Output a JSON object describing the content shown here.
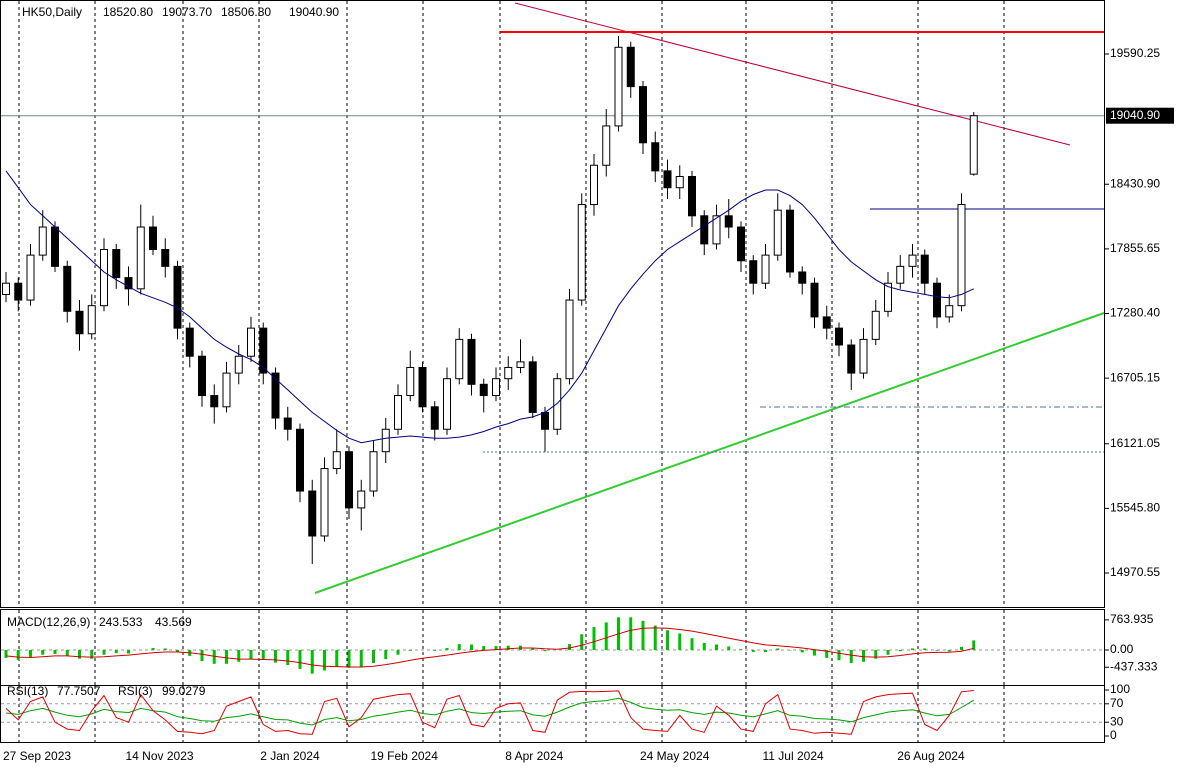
{
  "chart_data": {
    "type": "candlestick",
    "title": "HK50,Daily",
    "ohlc_labels": [
      "18520.80",
      "19073.70",
      "18506.80",
      "19040.90"
    ],
    "categories": [
      "27 Sep 2023",
      null,
      null,
      null,
      null,
      null,
      null,
      null,
      null,
      null,
      "14 Nov 2023",
      null,
      null,
      null,
      null,
      null,
      null,
      null,
      null,
      null,
      null,
      "2 Jan 2024",
      null,
      null,
      null,
      null,
      null,
      null,
      null,
      null,
      "19 Feb 2024",
      null,
      null,
      null,
      null,
      null,
      null,
      null,
      null,
      null,
      null,
      "8 Apr 2024",
      null,
      null,
      null,
      null,
      null,
      null,
      null,
      null,
      null,
      null,
      "24 May 2024",
      null,
      null,
      null,
      null,
      null,
      null,
      null,
      null,
      null,
      "11 Jul 2024",
      null,
      null,
      null,
      null,
      null,
      null,
      null,
      null,
      null,
      null,
      "26 Aug 2024",
      null,
      null,
      null,
      null,
      null,
      null
    ],
    "ohlc": [
      [
        17450,
        17650,
        17380,
        17550
      ],
      [
        17550,
        17600,
        17300,
        17400
      ],
      [
        17400,
        17900,
        17350,
        17800
      ],
      [
        17800,
        18200,
        17750,
        18050
      ],
      [
        18050,
        18100,
        17650,
        17700
      ],
      [
        17700,
        17750,
        17200,
        17300
      ],
      [
        17300,
        17400,
        16950,
        17100
      ],
      [
        17100,
        17450,
        17050,
        17350
      ],
      [
        17350,
        17950,
        17300,
        17850
      ],
      [
        17850,
        17900,
        17500,
        17600
      ],
      [
        17600,
        17700,
        17350,
        17500
      ],
      [
        17500,
        18250,
        17450,
        18050
      ],
      [
        18050,
        18150,
        17800,
        17850
      ],
      [
        17850,
        17950,
        17600,
        17700
      ],
      [
        17700,
        17750,
        17050,
        17150
      ],
      [
        17150,
        17200,
        16800,
        16900
      ],
      [
        16900,
        16950,
        16450,
        16550
      ],
      [
        16550,
        16650,
        16300,
        16450
      ],
      [
        16450,
        16850,
        16400,
        16750
      ],
      [
        16750,
        17000,
        16650,
        16900
      ],
      [
        16900,
        17250,
        16850,
        17150
      ],
      [
        17150,
        17200,
        16650,
        16750
      ],
      [
        16750,
        16800,
        16250,
        16350
      ],
      [
        16350,
        16450,
        16150,
        16250
      ],
      [
        16250,
        16300,
        15600,
        15700
      ],
      [
        15700,
        15800,
        15050,
        15300
      ],
      [
        15300,
        16000,
        15250,
        15900
      ],
      [
        15900,
        16250,
        15850,
        16050
      ],
      [
        16050,
        16100,
        15450,
        15550
      ],
      [
        15550,
        15800,
        15350,
        15700
      ],
      [
        15700,
        16150,
        15650,
        16050
      ],
      [
        16050,
        16350,
        15950,
        16250
      ],
      [
        16250,
        16650,
        16200,
        16550
      ],
      [
        16550,
        16950,
        16500,
        16800
      ],
      [
        16800,
        16850,
        16400,
        16450
      ],
      [
        16450,
        16500,
        16150,
        16250
      ],
      [
        16250,
        16800,
        16200,
        16700
      ],
      [
        16700,
        17150,
        16650,
        17050
      ],
      [
        17050,
        17100,
        16550,
        16650
      ],
      [
        16650,
        16700,
        16400,
        16550
      ],
      [
        16550,
        16800,
        16500,
        16700
      ],
      [
        16700,
        16900,
        16600,
        16800
      ],
      [
        16800,
        17050,
        16750,
        16850
      ],
      [
        16850,
        16900,
        16350,
        16400
      ],
      [
        16400,
        16450,
        16050,
        16250
      ],
      [
        16250,
        16750,
        16200,
        16700
      ],
      [
        16700,
        17500,
        16650,
        17400
      ],
      [
        17400,
        18350,
        17350,
        18250
      ],
      [
        18250,
        18700,
        18150,
        18600
      ],
      [
        18600,
        19100,
        18500,
        18950
      ],
      [
        18950,
        19750,
        18900,
        19650
      ],
      [
        19650,
        19700,
        19200,
        19300
      ],
      [
        19300,
        19350,
        18700,
        18800
      ],
      [
        18800,
        18900,
        18450,
        18550
      ],
      [
        18550,
        18650,
        18300,
        18400
      ],
      [
        18400,
        18600,
        18300,
        18500
      ],
      [
        18500,
        18550,
        18050,
        18150
      ],
      [
        18150,
        18200,
        17800,
        17900
      ],
      [
        17900,
        18250,
        17850,
        18150
      ],
      [
        18150,
        18300,
        17950,
        18050
      ],
      [
        18050,
        18100,
        17650,
        17750
      ],
      [
        17750,
        17800,
        17450,
        17550
      ],
      [
        17550,
        17900,
        17500,
        17800
      ],
      [
        17800,
        18350,
        17750,
        18200
      ],
      [
        18200,
        18250,
        17600,
        17650
      ],
      [
        17650,
        17700,
        17450,
        17550
      ],
      [
        17550,
        17600,
        17150,
        17250
      ],
      [
        17250,
        17350,
        17050,
        17150
      ],
      [
        17150,
        17200,
        16900,
        17000
      ],
      [
        17000,
        17050,
        16600,
        16750
      ],
      [
        16750,
        17150,
        16700,
        17050
      ],
      [
        17050,
        17400,
        17000,
        17300
      ],
      [
        17300,
        17650,
        17250,
        17550
      ],
      [
        17550,
        17800,
        17500,
        17700
      ],
      [
        17700,
        17900,
        17600,
        17800
      ],
      [
        17800,
        17850,
        17450,
        17550
      ],
      [
        17550,
        17600,
        17150,
        17250
      ],
      [
        17250,
        17450,
        17200,
        17350
      ],
      [
        17350,
        18350,
        17300,
        18250
      ],
      [
        18520.8,
        19073.7,
        18506.8,
        19040.9
      ]
    ],
    "up_color": "#ffffff",
    "down_color": "#000000",
    "ma": {
      "color": "#000080",
      "values": [
        18550,
        18400,
        18250,
        18150,
        18050,
        17950,
        17850,
        17750,
        17650,
        17580,
        17520,
        17460,
        17420,
        17380,
        17330,
        17250,
        17150,
        17050,
        16980,
        16920,
        16870,
        16800,
        16700,
        16600,
        16500,
        16400,
        16320,
        16240,
        16170,
        16130,
        16150,
        16170,
        16180,
        16190,
        16180,
        16170,
        16170,
        16180,
        16200,
        16230,
        16270,
        16300,
        16340,
        16360,
        16400,
        16480,
        16600,
        16750,
        16950,
        17150,
        17350,
        17500,
        17630,
        17750,
        17850,
        17920,
        17990,
        18060,
        18130,
        18200,
        18280,
        18340,
        18380,
        18380,
        18330,
        18250,
        18130,
        17990,
        17850,
        17740,
        17660,
        17580,
        17520,
        17490,
        17470,
        17450,
        17430,
        17420,
        17450,
        17500
      ]
    },
    "ylim": [
      14667.9,
      20070.9
    ],
    "yticks": [
      19590.25,
      {
        "value": 18430.9,
        "label": "18430.90"
      },
      17855.65,
      {
        "value": 17280.4,
        "label": "17280.40"
      },
      16705.15,
      16121.05,
      {
        "value": 15545.8,
        "label": "15545.80"
      },
      14970.55
    ],
    "grid": true,
    "macd": {
      "name": "MACD(12,26,9)",
      "color": "#00c000",
      "signal_color": "#d00000",
      "values": [
        -200,
        -250,
        -200,
        -120,
        -100,
        -150,
        -220,
        -220,
        -120,
        -80,
        -90,
        0,
        50,
        40,
        -50,
        -150,
        -280,
        -350,
        -350,
        -300,
        -230,
        -250,
        -320,
        -380,
        -480,
        -600,
        -520,
        -430,
        -450,
        -430,
        -330,
        -230,
        -120,
        -20,
        0,
        -20,
        50,
        150,
        140,
        100,
        100,
        110,
        110,
        40,
        -30,
        0,
        150,
        400,
        580,
        700,
        830,
        830,
        740,
        620,
        500,
        420,
        300,
        180,
        140,
        90,
        20,
        -50,
        -50,
        40,
        -10,
        -60,
        -140,
        -200,
        -260,
        -330,
        -300,
        -220,
        -120,
        -30,
        40,
        40,
        -20,
        -40,
        80,
        243.533
      ],
      "signal": [
        -150,
        -180,
        -190,
        -170,
        -150,
        -150,
        -170,
        -180,
        -170,
        -150,
        -130,
        -100,
        -70,
        -50,
        -50,
        -70,
        -110,
        -160,
        -200,
        -230,
        -230,
        -240,
        -250,
        -280,
        -320,
        -380,
        -410,
        -420,
        -430,
        -430,
        -410,
        -370,
        -320,
        -260,
        -210,
        -170,
        -130,
        -80,
        -40,
        -10,
        10,
        30,
        50,
        50,
        30,
        20,
        50,
        120,
        210,
        310,
        410,
        500,
        550,
        560,
        550,
        520,
        480,
        420,
        360,
        300,
        240,
        180,
        130,
        110,
        80,
        50,
        10,
        -30,
        -80,
        -130,
        -170,
        -180,
        -170,
        -140,
        -100,
        -70,
        -60,
        -55,
        -30,
        43.569
      ],
      "ylim": [
        -862,
        989
      ],
      "yticks": [
        763.935,
        {
          "value": 0,
          "label": "0.00"
        },
        -437.333
      ]
    },
    "rsi": {
      "series": [
        {
          "name": "RSI(13)",
          "color": "#00a000",
          "values": [
            50,
            47,
            55,
            60,
            52,
            45,
            42,
            48,
            58,
            53,
            51,
            60,
            55,
            52,
            42,
            38,
            33,
            32,
            40,
            43,
            48,
            42,
            36,
            35,
            28,
            24,
            36,
            40,
            33,
            36,
            43,
            47,
            52,
            56,
            49,
            46,
            54,
            59,
            51,
            49,
            52,
            54,
            55,
            46,
            43,
            52,
            63,
            72,
            75,
            77,
            82,
            73,
            62,
            58,
            56,
            57,
            51,
            47,
            52,
            50,
            45,
            42,
            48,
            55,
            45,
            43,
            38,
            37,
            35,
            31,
            40,
            46,
            52,
            55,
            57,
            50,
            44,
            47,
            62,
            77.7507
          ]
        },
        {
          "name": "RSI(3)",
          "color": "#e00000",
          "values": [
            60,
            35,
            75,
            85,
            30,
            15,
            12,
            55,
            88,
            40,
            30,
            90,
            55,
            35,
            10,
            8,
            5,
            12,
            65,
            75,
            85,
            25,
            10,
            12,
            5,
            4,
            75,
            82,
            20,
            40,
            80,
            85,
            90,
            92,
            30,
            18,
            80,
            88,
            25,
            20,
            60,
            70,
            72,
            12,
            8,
            78,
            95,
            97,
            96,
            97,
            98,
            40,
            15,
            12,
            10,
            45,
            15,
            8,
            65,
            45,
            15,
            10,
            70,
            90,
            15,
            12,
            6,
            8,
            6,
            4,
            75,
            85,
            90,
            92,
            93,
            25,
            12,
            45,
            96,
            99.0279
          ]
        }
      ],
      "ylim": [
        -13,
        108.7
      ],
      "yticks": [
        100,
        70,
        30,
        0
      ]
    }
  }
}
